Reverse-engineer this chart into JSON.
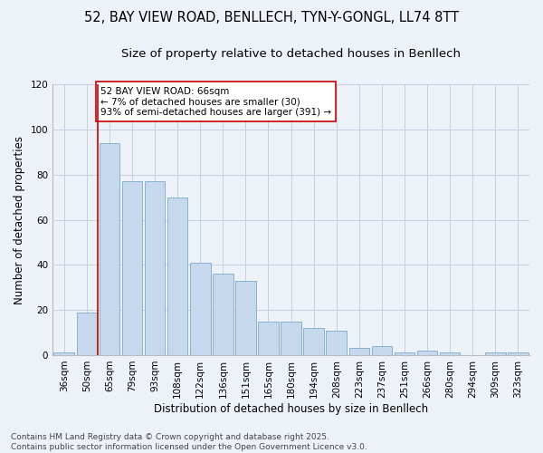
{
  "title_line1": "52, BAY VIEW ROAD, BENLLECH, TYN-Y-GONGL, LL74 8TT",
  "title_line2": "Size of property relative to detached houses in Benllech",
  "xlabel": "Distribution of detached houses by size in Benllech",
  "ylabel": "Number of detached properties",
  "categories": [
    "36sqm",
    "50sqm",
    "65sqm",
    "79sqm",
    "93sqm",
    "108sqm",
    "122sqm",
    "136sqm",
    "151sqm",
    "165sqm",
    "180sqm",
    "194sqm",
    "208sqm",
    "223sqm",
    "237sqm",
    "251sqm",
    "266sqm",
    "280sqm",
    "294sqm",
    "309sqm",
    "323sqm"
  ],
  "values": [
    1,
    19,
    94,
    77,
    77,
    70,
    41,
    36,
    33,
    15,
    15,
    12,
    11,
    3,
    4,
    1,
    2,
    1,
    0,
    1,
    1
  ],
  "bar_color": "#c6d9ec",
  "bar_edge_color": "#7aaac8",
  "grid_color": "#c5cfe0",
  "background_color": "#edf1f8",
  "vline_x": 1.5,
  "vline_color": "#cc0000",
  "annotation_text": "52 BAY VIEW ROAD: 66sqm\n← 7% of detached houses are smaller (30)\n93% of semi-detached houses are larger (391) →",
  "annotation_box_color": "#ffffff",
  "annotation_box_edge": "#cc0000",
  "ylim": [
    0,
    120
  ],
  "yticks": [
    0,
    20,
    40,
    60,
    80,
    100,
    120
  ],
  "footer_text": "Contains HM Land Registry data © Crown copyright and database right 2025.\nContains public sector information licensed under the Open Government Licence v3.0.",
  "title_fontsize": 10.5,
  "subtitle_fontsize": 9.5,
  "axis_label_fontsize": 8.5,
  "tick_fontsize": 7.5,
  "annotation_fontsize": 7.5,
  "footer_fontsize": 6.5
}
